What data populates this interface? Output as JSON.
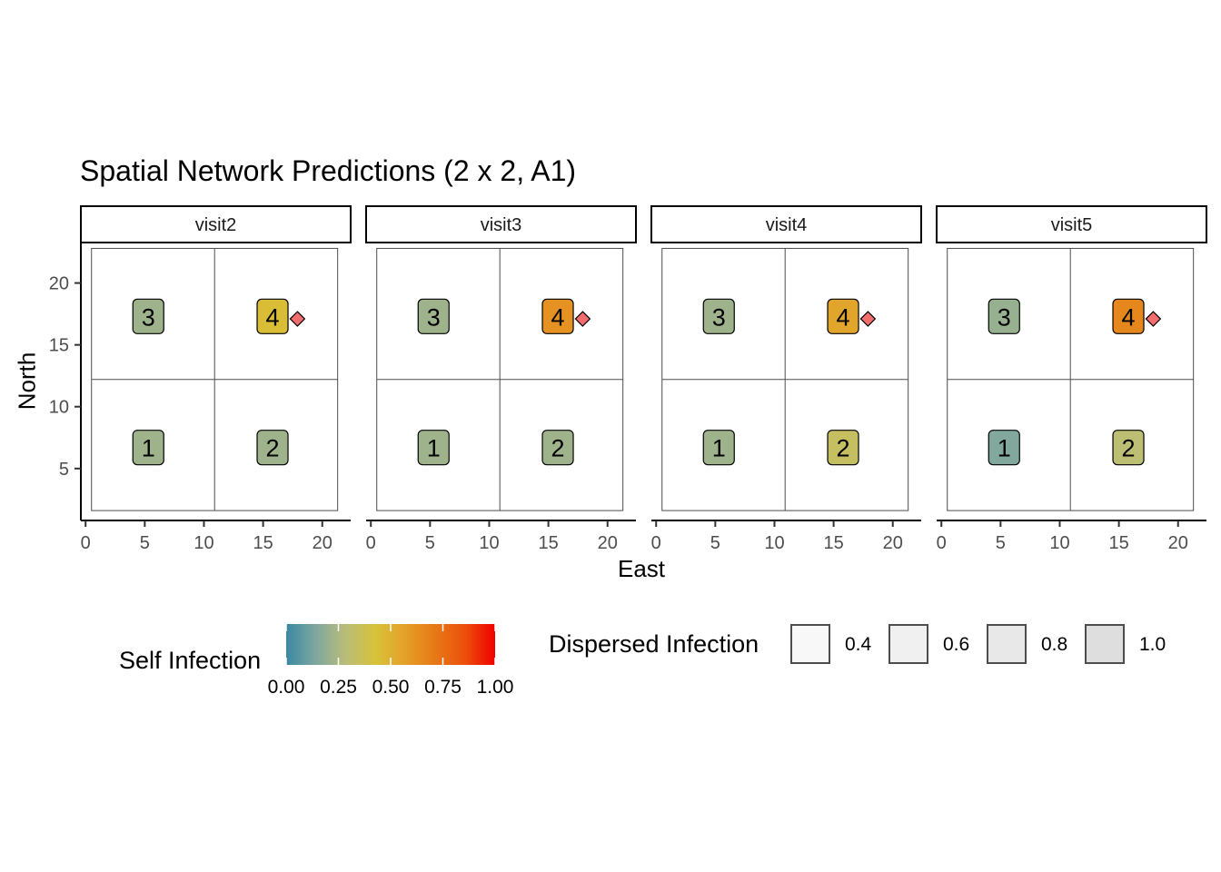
{
  "chart_data": {
    "type": "scatter",
    "title": "Spatial Network Predictions (2 x 2, A1)",
    "xlabel": "East",
    "ylabel": "North",
    "xlim": [
      -0.4,
      22.4
    ],
    "ylim": [
      0.8,
      23.2
    ],
    "x_ticks": [
      0,
      5,
      10,
      15,
      20
    ],
    "y_ticks": [
      5,
      10,
      15,
      20
    ],
    "x_tick_labels": [
      "0",
      "5",
      "10",
      "15",
      "20"
    ],
    "y_tick_labels": [
      "5",
      "10",
      "15",
      "20"
    ],
    "grid": {
      "x_bounds": [
        0.5,
        10.9,
        21.3
      ],
      "y_bounds": [
        1.6,
        12.2,
        22.8
      ]
    },
    "panels": [
      {
        "facet": "visit2",
        "plots": [
          {
            "label": "1",
            "x": 5.3,
            "y": 6.7,
            "self_infection": 0.22
          },
          {
            "label": "2",
            "x": 15.8,
            "y": 6.7,
            "self_infection": 0.22
          },
          {
            "label": "3",
            "x": 5.3,
            "y": 17.3,
            "self_infection": 0.22
          },
          {
            "label": "4",
            "x": 15.8,
            "y": 17.3,
            "self_infection": 0.45
          }
        ],
        "dispersal_point": {
          "x": 17.9,
          "y": 17.1
        }
      },
      {
        "facet": "visit3",
        "plots": [
          {
            "label": "1",
            "x": 5.3,
            "y": 6.7,
            "self_infection": 0.22
          },
          {
            "label": "2",
            "x": 15.8,
            "y": 6.7,
            "self_infection": 0.22
          },
          {
            "label": "3",
            "x": 5.3,
            "y": 17.3,
            "self_infection": 0.22
          },
          {
            "label": "4",
            "x": 15.8,
            "y": 17.3,
            "self_infection": 0.62
          }
        ],
        "dispersal_point": {
          "x": 17.9,
          "y": 17.1
        }
      },
      {
        "facet": "visit4",
        "plots": [
          {
            "label": "1",
            "x": 5.3,
            "y": 6.7,
            "self_infection": 0.22
          },
          {
            "label": "2",
            "x": 15.8,
            "y": 6.7,
            "self_infection": 0.34
          },
          {
            "label": "3",
            "x": 5.3,
            "y": 17.3,
            "self_infection": 0.22
          },
          {
            "label": "4",
            "x": 15.8,
            "y": 17.3,
            "self_infection": 0.55
          }
        ],
        "dispersal_point": {
          "x": 17.9,
          "y": 17.1
        }
      },
      {
        "facet": "visit5",
        "plots": [
          {
            "label": "1",
            "x": 5.3,
            "y": 6.7,
            "self_infection": 0.15
          },
          {
            "label": "2",
            "x": 15.8,
            "y": 6.7,
            "self_infection": 0.3
          },
          {
            "label": "3",
            "x": 5.3,
            "y": 17.3,
            "self_infection": 0.2
          },
          {
            "label": "4",
            "x": 15.8,
            "y": 17.3,
            "self_infection": 0.66
          }
        ],
        "dispersal_point": {
          "x": 17.9,
          "y": 17.1
        }
      }
    ],
    "legend": {
      "placement": "bottom",
      "self_infection": {
        "title": "Self Infection",
        "range": [
          0,
          1
        ],
        "ticks": [
          0,
          0.25,
          0.5,
          0.75,
          1
        ],
        "tick_labels": [
          "0.00",
          "0.25",
          "0.50",
          "0.75",
          "1.00"
        ],
        "colors": [
          "#3a89a0",
          "#7fa7a0",
          "#b9bd79",
          "#d8c23a",
          "#e4a028",
          "#e77817",
          "#ec4f0b",
          "#f00000"
        ]
      },
      "dispersed_infection": {
        "title": "Dispersed Infection",
        "items": [
          {
            "label": "0.4",
            "fill": "#f8f8f8"
          },
          {
            "label": "0.6",
            "fill": "#f0f0f0"
          },
          {
            "label": "0.8",
            "fill": "#e8e8e8"
          },
          {
            "label": "1.0",
            "fill": "#dedede"
          }
        ]
      }
    },
    "colors": {
      "dispersal_marker": "#f26d6d",
      "grid_line": "#4d4d4d"
    }
  }
}
